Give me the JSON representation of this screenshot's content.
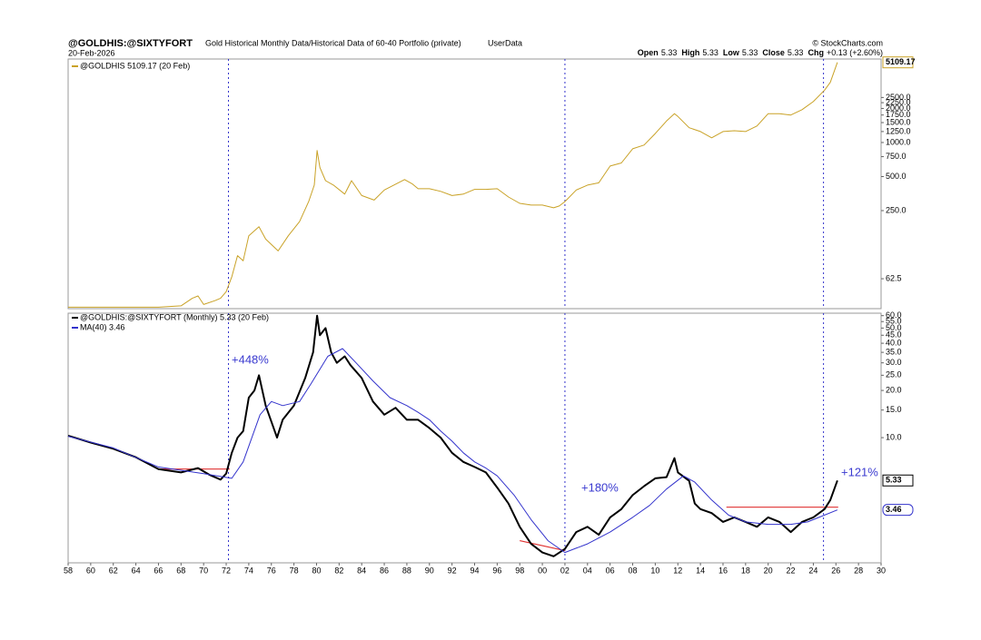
{
  "header": {
    "title": "@GOLDHIS:@SIXTYFORT",
    "subtitle": "Gold Historical Monthly Data/Historical Data of 60-40 Portfolio (private)",
    "source_tag": "UserData",
    "date": "20-Feb-2026",
    "credit": "© StockCharts.com",
    "ohlc": [
      {
        "label": "Open",
        "value": "5.33"
      },
      {
        "label": "High",
        "value": "5.33"
      },
      {
        "label": "Low",
        "value": "5.33"
      },
      {
        "label": "Close",
        "value": "5.33"
      },
      {
        "label": "Chg",
        "value": "+0.13 (+2.60%)"
      }
    ]
  },
  "chart_data": [
    {
      "type": "line",
      "log_scale": true,
      "grid": false,
      "xlim": [
        1958,
        2030
      ],
      "ylim": [
        34,
        5470
      ],
      "yticks": [
        {
          "value": 62.5,
          "label": "62.5"
        },
        {
          "value": 250,
          "label": "250.0"
        },
        {
          "value": 500,
          "label": "500.0"
        },
        {
          "value": 750,
          "label": "750.0"
        },
        {
          "value": 1000,
          "label": "1000.0"
        },
        {
          "value": 1250,
          "label": "1250.0"
        },
        {
          "value": 1500,
          "label": "1500.0"
        },
        {
          "value": 1750,
          "label": "1750.0"
        },
        {
          "value": 2000,
          "label": "2000.0"
        },
        {
          "value": 2250,
          "label": "2250.0"
        },
        {
          "value": 2500,
          "label": "2500.0"
        }
      ],
      "vlines": [
        1972.2,
        2002.0,
        2024.9
      ],
      "series": [
        {
          "name": "@GOLDHIS 5109.17 (20 Feb)",
          "color": "#c9a227",
          "x": [
            1958,
            1960,
            1962,
            1964,
            1966,
            1968,
            1969,
            1969.5,
            1970,
            1971,
            1971.5,
            1972,
            1972.5,
            1973,
            1973.5,
            1974,
            1974.9,
            1975.5,
            1976.6,
            1977.5,
            1978.5,
            1979.3,
            1979.8,
            1980.05,
            1980.3,
            1980.8,
            1981.5,
            1982.5,
            1983.1,
            1984,
            1985.1,
            1986,
            1987.8,
            1988.5,
            1989,
            1990,
            1991,
            1992,
            1993,
            1994,
            1995,
            1996,
            1997,
            1998,
            1999,
            2000,
            2001,
            2001.5,
            2002,
            2003,
            2004,
            2005,
            2006,
            2007,
            2008,
            2009,
            2010,
            2011,
            2011.7,
            2012,
            2013,
            2014,
            2015,
            2016,
            2017,
            2018,
            2019,
            2020,
            2021,
            2022,
            2023,
            2024,
            2025,
            2025.5,
            2026.13
          ],
          "values": [
            35,
            35,
            35,
            35,
            35,
            36,
            42,
            44,
            37,
            40,
            42,
            48,
            65,
            100,
            90,
            150,
            180,
            140,
            110,
            150,
            200,
            300,
            420,
            850,
            600,
            460,
            420,
            350,
            460,
            340,
            310,
            380,
            470,
            430,
            390,
            390,
            370,
            340,
            350,
            385,
            385,
            390,
            330,
            290,
            280,
            280,
            265,
            275,
            300,
            380,
            420,
            440,
            620,
            660,
            880,
            950,
            1200,
            1550,
            1800,
            1700,
            1350,
            1250,
            1100,
            1250,
            1270,
            1250,
            1400,
            1800,
            1800,
            1750,
            1950,
            2300,
            2900,
            3400,
            5109.17
          ]
        }
      ]
    },
    {
      "type": "line",
      "log_scale": true,
      "grid": false,
      "xlim": [
        1958,
        2030
      ],
      "ylim": [
        1.59,
        62.2
      ],
      "xticks": [
        {
          "value": 1958,
          "label": "58"
        },
        {
          "value": 1960,
          "label": "60"
        },
        {
          "value": 1962,
          "label": "62"
        },
        {
          "value": 1964,
          "label": "64"
        },
        {
          "value": 1966,
          "label": "66"
        },
        {
          "value": 1968,
          "label": "68"
        },
        {
          "value": 1970,
          "label": "70"
        },
        {
          "value": 1972,
          "label": "72"
        },
        {
          "value": 1974,
          "label": "74"
        },
        {
          "value": 1976,
          "label": "76"
        },
        {
          "value": 1978,
          "label": "78"
        },
        {
          "value": 1980,
          "label": "80"
        },
        {
          "value": 1982,
          "label": "82"
        },
        {
          "value": 1984,
          "label": "84"
        },
        {
          "value": 1986,
          "label": "86"
        },
        {
          "value": 1988,
          "label": "88"
        },
        {
          "value": 1990,
          "label": "90"
        },
        {
          "value": 1992,
          "label": "92"
        },
        {
          "value": 1994,
          "label": "94"
        },
        {
          "value": 1996,
          "label": "96"
        },
        {
          "value": 1998,
          "label": "98"
        },
        {
          "value": 2000,
          "label": "00"
        },
        {
          "value": 2002,
          "label": "02"
        },
        {
          "value": 2004,
          "label": "04"
        },
        {
          "value": 2006,
          "label": "06"
        },
        {
          "value": 2008,
          "label": "08"
        },
        {
          "value": 2010,
          "label": "10"
        },
        {
          "value": 2012,
          "label": "12"
        },
        {
          "value": 2014,
          "label": "14"
        },
        {
          "value": 2016,
          "label": "16"
        },
        {
          "value": 2018,
          "label": "18"
        },
        {
          "value": 2020,
          "label": "20"
        },
        {
          "value": 2022,
          "label": "22"
        },
        {
          "value": 2024,
          "label": "24"
        },
        {
          "value": 2026,
          "label": "26"
        },
        {
          "value": 2028,
          "label": "28"
        },
        {
          "value": 2030,
          "label": "30"
        }
      ],
      "yticks": [
        {
          "value": 10,
          "label": "10.0"
        },
        {
          "value": 15,
          "label": "15.0"
        },
        {
          "value": 20,
          "label": "20.0"
        },
        {
          "value": 25,
          "label": "25.0"
        },
        {
          "value": 30,
          "label": "30.0"
        },
        {
          "value": 35,
          "label": "35.0"
        },
        {
          "value": 40,
          "label": "40.0"
        },
        {
          "value": 45,
          "label": "45.0"
        },
        {
          "value": 50,
          "label": "50.0"
        },
        {
          "value": 55,
          "label": "55.0"
        },
        {
          "value": 60,
          "label": "60.0"
        }
      ],
      "vlines": [
        1972.2,
        2002.0,
        2024.9
      ],
      "annotations": [
        "+448%",
        "+180%",
        "+121%"
      ],
      "trendlines": [
        {
          "color": "#e03030",
          "x": [
            1966,
            1972.3
          ],
          "values": [
            6.3,
            6.3
          ]
        },
        {
          "color": "#e03030",
          "x": [
            1998,
            2002
          ],
          "values": [
            2.2,
            1.9
          ]
        },
        {
          "color": "#e03030",
          "x": [
            2016.3,
            2026.2
          ],
          "values": [
            3.6,
            3.6
          ]
        }
      ],
      "series": [
        {
          "name": "@GOLDHIS:@SIXTYFORT (Monthly) 5.33 (20 Feb)",
          "color": "#000000",
          "x": [
            1958,
            1960,
            1962,
            1964,
            1966,
            1968,
            1969.5,
            1970.5,
            1971.5,
            1972,
            1972.5,
            1973,
            1973.5,
            1974,
            1974.5,
            1974.9,
            1975.5,
            1976.5,
            1977,
            1978,
            1979,
            1979.7,
            1980.05,
            1980.3,
            1980.8,
            1981.3,
            1981.8,
            1982.5,
            1983,
            1984,
            1985,
            1986,
            1987,
            1988,
            1989,
            1990,
            1991,
            1992,
            1993,
            1994,
            1995,
            1996,
            1997,
            1998,
            1999,
            2000,
            2001,
            2002,
            2003,
            2004,
            2005,
            2006,
            2007,
            2008,
            2009,
            2010,
            2011,
            2011.7,
            2012,
            2013,
            2013.5,
            2014,
            2015,
            2016,
            2017,
            2018,
            2019,
            2020,
            2021,
            2022,
            2023,
            2024,
            2025,
            2025.5,
            2026.13
          ],
          "values": [
            10.3,
            9.3,
            8.5,
            7.5,
            6.3,
            6.0,
            6.4,
            5.8,
            5.4,
            5.9,
            8,
            10,
            11,
            18,
            20,
            25,
            16,
            10,
            13,
            16,
            24,
            35,
            60,
            45,
            50,
            35,
            30,
            33,
            29,
            24,
            17,
            14,
            15.5,
            13,
            13,
            11.5,
            10,
            8,
            7,
            6.5,
            6,
            4.8,
            3.8,
            2.7,
            2.1,
            1.85,
            1.75,
            1.95,
            2.5,
            2.7,
            2.4,
            3.1,
            3.5,
            4.3,
            4.9,
            5.5,
            5.6,
            7.4,
            6.0,
            5.3,
            3.8,
            3.5,
            3.3,
            2.9,
            3.1,
            2.9,
            2.7,
            3.1,
            2.9,
            2.5,
            2.9,
            3.1,
            3.5,
            4.0,
            5.33
          ]
        },
        {
          "name": "MA(40) 3.46",
          "color": "#3333cc",
          "x": [
            1958,
            1962,
            1966,
            1970,
            1972.5,
            1973.5,
            1975,
            1976,
            1977,
            1978.5,
            1979.5,
            1981,
            1982.3,
            1983.5,
            1985,
            1986.5,
            1988,
            1989,
            1990,
            1991,
            1992,
            1993,
            1994,
            1995,
            1996,
            1997.5,
            1999,
            2000.5,
            2002,
            2004,
            2006,
            2008,
            2009.5,
            2011,
            2012.5,
            2013.5,
            2015,
            2016.5,
            2018,
            2020,
            2022,
            2023.5,
            2024.5,
            2026.13
          ],
          "values": [
            10.2,
            8.6,
            6.5,
            5.9,
            5.5,
            7,
            14,
            17,
            16,
            17,
            22,
            33,
            37,
            30,
            23,
            18,
            16,
            14.5,
            13,
            11,
            9.5,
            8,
            7,
            6.4,
            5.7,
            4.3,
            3,
            2.2,
            1.85,
            2.1,
            2.5,
            3.1,
            3.7,
            4.7,
            5.7,
            5.2,
            4,
            3.2,
            2.9,
            2.8,
            2.8,
            2.9,
            3.1,
            3.46
          ]
        }
      ]
    }
  ]
}
